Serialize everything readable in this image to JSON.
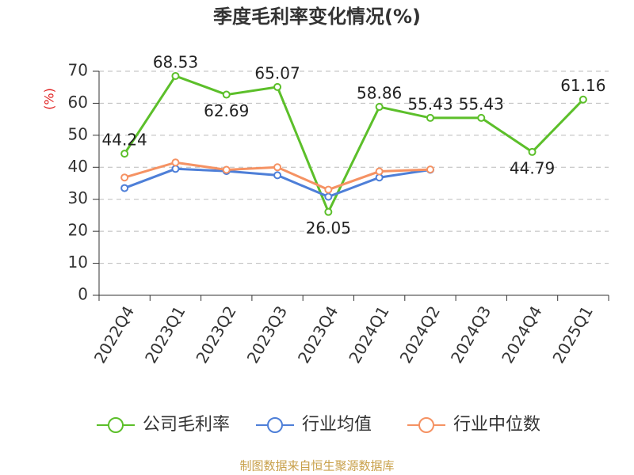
{
  "chart_data": {
    "type": "line",
    "title": "季度毛利率变化情况(%)",
    "y_label": "(%)",
    "source": "制图数据来自恒生聚源数据库",
    "categories": [
      "2022Q4",
      "2023Q1",
      "2023Q2",
      "2023Q3",
      "2023Q4",
      "2024Q1",
      "2024Q2",
      "2024Q3",
      "2024Q4",
      "2025Q1"
    ],
    "series": [
      {
        "name": "公司毛利率",
        "color": "#5cbf2a",
        "values": [
          44.24,
          68.53,
          62.69,
          65.07,
          26.05,
          58.86,
          55.43,
          55.43,
          44.79,
          61.16
        ],
        "labels": true
      },
      {
        "name": "行业均值",
        "color": "#4e7fd8",
        "values": [
          33.5,
          39.5,
          38.8,
          37.5,
          30.8,
          36.8,
          39.2,
          null,
          null,
          null
        ]
      },
      {
        "name": "行业中位数",
        "color": "#f59263",
        "values": [
          36.8,
          41.5,
          39.2,
          40.0,
          33.0,
          38.7,
          39.3,
          null,
          null,
          null
        ]
      }
    ],
    "ylim": [
      0,
      70
    ],
    "yticks": [
      0,
      10,
      20,
      30,
      40,
      50,
      60,
      70
    ],
    "grid": true
  }
}
